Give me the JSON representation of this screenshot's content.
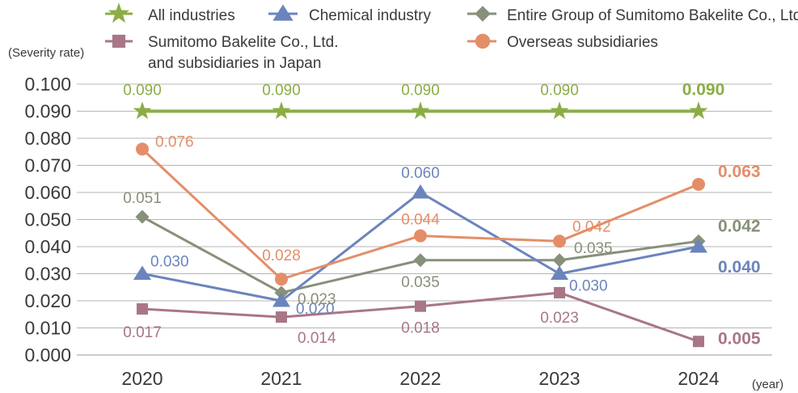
{
  "chart_data": {
    "type": "line",
    "y_title": "(Severity rate)",
    "x_title": "(year)",
    "categories": [
      "2020",
      "2021",
      "2022",
      "2023",
      "2024"
    ],
    "ylim": [
      0,
      0.1
    ],
    "y_ticks": [
      "0.000",
      "0.010",
      "0.020",
      "0.030",
      "0.040",
      "0.050",
      "0.060",
      "0.070",
      "0.080",
      "0.090",
      "0.100"
    ],
    "grid": true,
    "legend_position": "top",
    "series": [
      {
        "name": "All industries",
        "marker": "star",
        "color": "#8cad45",
        "values": [
          0.09,
          0.09,
          0.09,
          0.09,
          0.09
        ],
        "labels": [
          "0.090",
          "0.090",
          "0.090",
          "0.090",
          "0.090"
        ]
      },
      {
        "name": "Chemical industry",
        "marker": "triangle",
        "color": "#6b84bd",
        "values": [
          0.03,
          0.02,
          0.06,
          0.03,
          0.04
        ],
        "labels": [
          "0.030",
          "0.020",
          "0.060",
          "0.030",
          "0.040"
        ]
      },
      {
        "name": "Entire Group of Sumitomo Bakelite Co., Ltd.",
        "marker": "diamond",
        "color": "#87907a",
        "values": [
          0.051,
          0.023,
          0.035,
          0.035,
          0.042
        ],
        "labels": [
          "0.051",
          "0.023",
          "0.035",
          "0.035",
          "0.042"
        ]
      },
      {
        "name_lines": [
          "Sumitomo Bakelite Co., Ltd.",
          "and subsidiaries in Japan"
        ],
        "marker": "square",
        "color": "#a87687",
        "values": [
          0.017,
          0.014,
          0.018,
          0.023,
          0.005
        ],
        "labels": [
          "0.017",
          "0.014",
          "0.018",
          "0.023",
          "0.005"
        ]
      },
      {
        "name": "Overseas subsidiaries",
        "marker": "circle",
        "color": "#e48e69",
        "values": [
          0.076,
          0.028,
          0.044,
          0.042,
          0.063
        ],
        "labels": [
          "0.076",
          "0.028",
          "0.044",
          "0.042",
          "0.063"
        ]
      }
    ]
  }
}
